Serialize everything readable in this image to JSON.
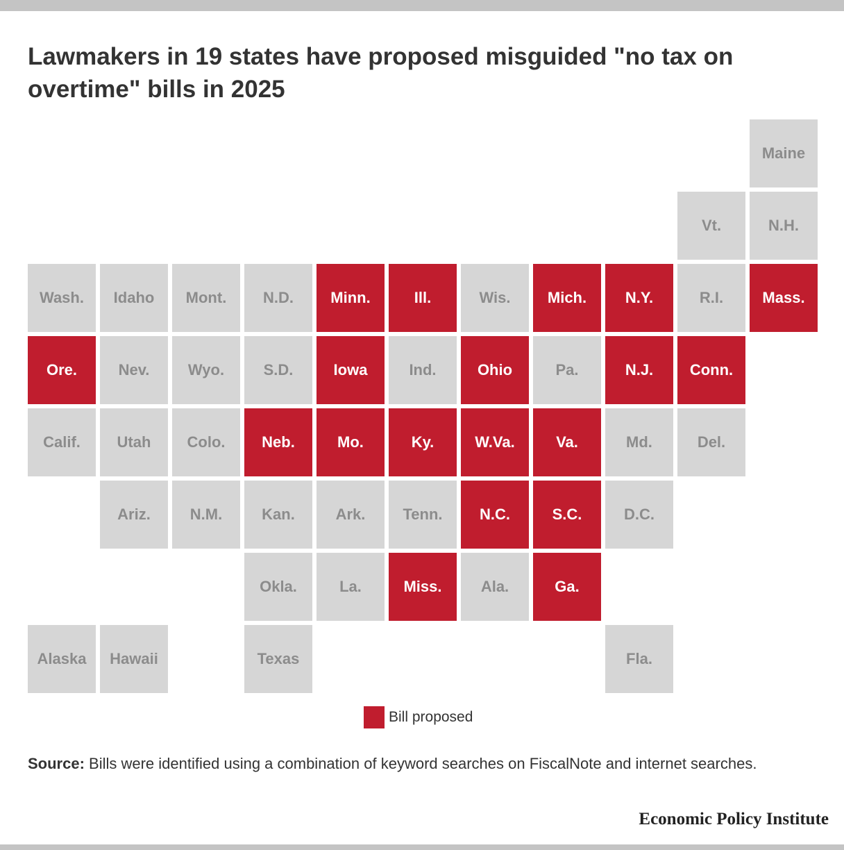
{
  "title": "Lawmakers in 19 states have proposed misguided \"no tax on overtime\" bills in 2025",
  "colors": {
    "bill_proposed": "#c01d2e",
    "no_bill": "#d6d6d6",
    "label_on": "#ffffff",
    "label_off": "#8c8c8c"
  },
  "chart_data": {
    "type": "tile-map",
    "legend": [
      "Bill proposed"
    ],
    "states": [
      {
        "label": "Maine",
        "row": 0,
        "col": 10,
        "bill_proposed": false
      },
      {
        "label": "Vt.",
        "row": 1,
        "col": 9,
        "bill_proposed": false
      },
      {
        "label": "N.H.",
        "row": 1,
        "col": 10,
        "bill_proposed": false
      },
      {
        "label": "Wash.",
        "row": 2,
        "col": 0,
        "bill_proposed": false
      },
      {
        "label": "Idaho",
        "row": 2,
        "col": 1,
        "bill_proposed": false
      },
      {
        "label": "Mont.",
        "row": 2,
        "col": 2,
        "bill_proposed": false
      },
      {
        "label": "N.D.",
        "row": 2,
        "col": 3,
        "bill_proposed": false
      },
      {
        "label": "Minn.",
        "row": 2,
        "col": 4,
        "bill_proposed": true
      },
      {
        "label": "Ill.",
        "row": 2,
        "col": 5,
        "bill_proposed": true
      },
      {
        "label": "Wis.",
        "row": 2,
        "col": 6,
        "bill_proposed": false
      },
      {
        "label": "Mich.",
        "row": 2,
        "col": 7,
        "bill_proposed": true
      },
      {
        "label": "N.Y.",
        "row": 2,
        "col": 8,
        "bill_proposed": true
      },
      {
        "label": "R.I.",
        "row": 2,
        "col": 9,
        "bill_proposed": false
      },
      {
        "label": "Mass.",
        "row": 2,
        "col": 10,
        "bill_proposed": true
      },
      {
        "label": "Ore.",
        "row": 3,
        "col": 0,
        "bill_proposed": true
      },
      {
        "label": "Nev.",
        "row": 3,
        "col": 1,
        "bill_proposed": false
      },
      {
        "label": "Wyo.",
        "row": 3,
        "col": 2,
        "bill_proposed": false
      },
      {
        "label": "S.D.",
        "row": 3,
        "col": 3,
        "bill_proposed": false
      },
      {
        "label": "Iowa",
        "row": 3,
        "col": 4,
        "bill_proposed": true
      },
      {
        "label": "Ind.",
        "row": 3,
        "col": 5,
        "bill_proposed": false
      },
      {
        "label": "Ohio",
        "row": 3,
        "col": 6,
        "bill_proposed": true
      },
      {
        "label": "Pa.",
        "row": 3,
        "col": 7,
        "bill_proposed": false
      },
      {
        "label": "N.J.",
        "row": 3,
        "col": 8,
        "bill_proposed": true
      },
      {
        "label": "Conn.",
        "row": 3,
        "col": 9,
        "bill_proposed": true
      },
      {
        "label": "Calif.",
        "row": 4,
        "col": 0,
        "bill_proposed": false
      },
      {
        "label": "Utah",
        "row": 4,
        "col": 1,
        "bill_proposed": false
      },
      {
        "label": "Colo.",
        "row": 4,
        "col": 2,
        "bill_proposed": false
      },
      {
        "label": "Neb.",
        "row": 4,
        "col": 3,
        "bill_proposed": true
      },
      {
        "label": "Mo.",
        "row": 4,
        "col": 4,
        "bill_proposed": true
      },
      {
        "label": "Ky.",
        "row": 4,
        "col": 5,
        "bill_proposed": true
      },
      {
        "label": "W.Va.",
        "row": 4,
        "col": 6,
        "bill_proposed": true
      },
      {
        "label": "Va.",
        "row": 4,
        "col": 7,
        "bill_proposed": true
      },
      {
        "label": "Md.",
        "row": 4,
        "col": 8,
        "bill_proposed": false
      },
      {
        "label": "Del.",
        "row": 4,
        "col": 9,
        "bill_proposed": false
      },
      {
        "label": "Ariz.",
        "row": 5,
        "col": 1,
        "bill_proposed": false
      },
      {
        "label": "N.M.",
        "row": 5,
        "col": 2,
        "bill_proposed": false
      },
      {
        "label": "Kan.",
        "row": 5,
        "col": 3,
        "bill_proposed": false
      },
      {
        "label": "Ark.",
        "row": 5,
        "col": 4,
        "bill_proposed": false
      },
      {
        "label": "Tenn.",
        "row": 5,
        "col": 5,
        "bill_proposed": false
      },
      {
        "label": "N.C.",
        "row": 5,
        "col": 6,
        "bill_proposed": true
      },
      {
        "label": "S.C.",
        "row": 5,
        "col": 7,
        "bill_proposed": true
      },
      {
        "label": "D.C.",
        "row": 5,
        "col": 8,
        "bill_proposed": false
      },
      {
        "label": "Okla.",
        "row": 6,
        "col": 3,
        "bill_proposed": false
      },
      {
        "label": "La.",
        "row": 6,
        "col": 4,
        "bill_proposed": false
      },
      {
        "label": "Miss.",
        "row": 6,
        "col": 5,
        "bill_proposed": true
      },
      {
        "label": "Ala.",
        "row": 6,
        "col": 6,
        "bill_proposed": false
      },
      {
        "label": "Ga.",
        "row": 6,
        "col": 7,
        "bill_proposed": true
      },
      {
        "label": "Alaska",
        "row": 7,
        "col": 0,
        "bill_proposed": false
      },
      {
        "label": "Hawaii",
        "row": 7,
        "col": 1,
        "bill_proposed": false
      },
      {
        "label": "Texas",
        "row": 7,
        "col": 3,
        "bill_proposed": false
      },
      {
        "label": "Fla.",
        "row": 7,
        "col": 8,
        "bill_proposed": false
      }
    ]
  },
  "legend": {
    "label": "Bill proposed"
  },
  "source": {
    "label": "Source:",
    "text": " Bills were identified using a combination of keyword searches on FiscalNote and internet searches."
  },
  "publisher": "Economic Policy Institute"
}
